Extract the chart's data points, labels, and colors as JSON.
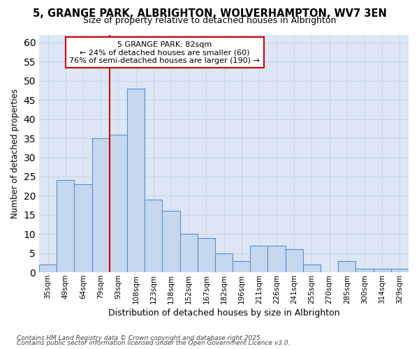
{
  "title_line1": "5, GRANGE PARK, ALBRIGHTON, WOLVERHAMPTON, WV7 3EN",
  "title_line2": "Size of property relative to detached houses in Albrighton",
  "xlabel": "Distribution of detached houses by size in Albrighton",
  "ylabel": "Number of detached properties",
  "categories": [
    "35sqm",
    "49sqm",
    "64sqm",
    "79sqm",
    "93sqm",
    "108sqm",
    "123sqm",
    "138sqm",
    "152sqm",
    "167sqm",
    "182sqm",
    "196sqm",
    "211sqm",
    "226sqm",
    "241sqm",
    "255sqm",
    "270sqm",
    "285sqm",
    "300sqm",
    "314sqm",
    "329sqm"
  ],
  "values": [
    2,
    24,
    23,
    35,
    36,
    48,
    19,
    16,
    10,
    9,
    5,
    3,
    7,
    7,
    6,
    2,
    0,
    3,
    1,
    1,
    1
  ],
  "bar_color": "#c5d8ef",
  "bar_edge_color": "#5b8fc9",
  "vline_color": "#cc0000",
  "vline_index": 3.5,
  "ylim": [
    0,
    62
  ],
  "yticks": [
    0,
    5,
    10,
    15,
    20,
    25,
    30,
    35,
    40,
    45,
    50,
    55,
    60
  ],
  "annotation_title": "5 GRANGE PARK: 82sqm",
  "annotation_line1": "← 24% of detached houses are smaller (60)",
  "annotation_line2": "76% of semi-detached houses are larger (190) →",
  "annotation_box_color": "#cc0000",
  "plot_bg_color": "#dce6f5",
  "fig_bg_color": "#ffffff",
  "grid_color": "#c8d4e8",
  "footer_line1": "Contains HM Land Registry data © Crown copyright and database right 2025.",
  "footer_line2": "Contains public sector information licensed under the Open Government Licence v3.0."
}
